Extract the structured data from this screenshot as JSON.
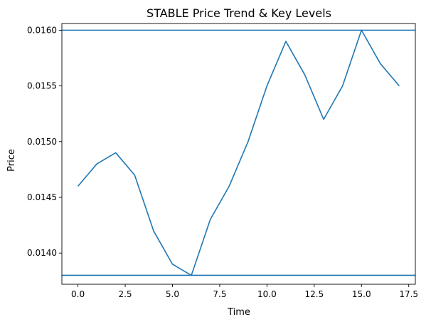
{
  "chart_data": {
    "type": "line",
    "title": "STABLE Price Trend & Key Levels",
    "xlabel": "Time",
    "ylabel": "Price",
    "xlim": [
      -0.85,
      17.85
    ],
    "ylim": [
      0.01372,
      0.01606
    ],
    "x_ticks": [
      0.0,
      2.5,
      5.0,
      7.5,
      10.0,
      12.5,
      15.0,
      17.5
    ],
    "x_tick_labels": [
      "0.0",
      "2.5",
      "5.0",
      "7.5",
      "10.0",
      "12.5",
      "15.0",
      "17.5"
    ],
    "y_ticks": [
      0.014,
      0.0145,
      0.015,
      0.0155,
      0.016
    ],
    "y_tick_labels": [
      "0.0140",
      "0.0145",
      "0.0150",
      "0.0155",
      "0.0160"
    ],
    "grid": false,
    "series": [
      {
        "x": [
          0,
          1,
          2,
          3,
          4,
          5,
          6,
          7,
          8,
          9,
          10,
          11,
          12,
          13,
          14,
          15,
          16,
          17
        ],
        "values": [
          0.0146,
          0.0148,
          0.0149,
          0.0147,
          0.0142,
          0.0139,
          0.0138,
          0.0143,
          0.0146,
          0.015,
          0.0155,
          0.0159,
          0.0156,
          0.0152,
          0.0155,
          0.016,
          0.0157,
          0.0155
        ],
        "color": "#1f77b4"
      }
    ],
    "hlines": [
      {
        "y": 0.016,
        "color": "#1f77b4"
      },
      {
        "y": 0.0138,
        "color": "#1f77b4"
      }
    ]
  }
}
